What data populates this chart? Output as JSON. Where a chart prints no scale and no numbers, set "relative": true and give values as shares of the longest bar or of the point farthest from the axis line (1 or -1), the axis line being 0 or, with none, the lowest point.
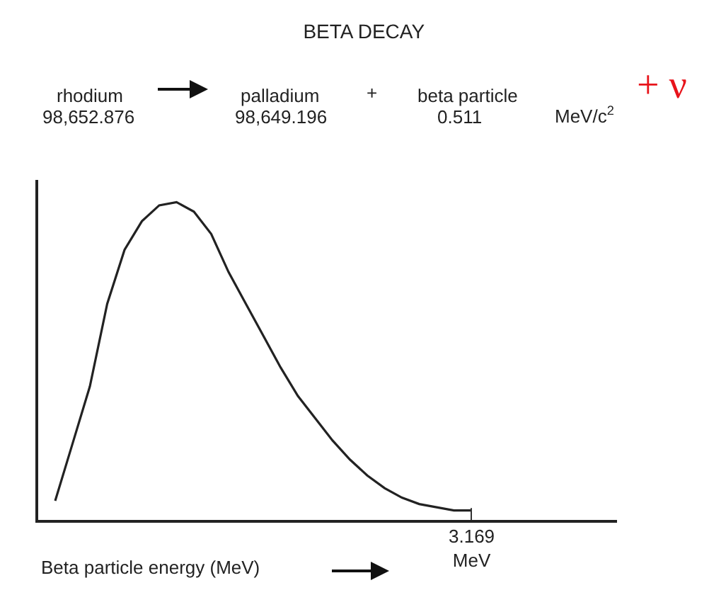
{
  "chart_data": {
    "type": "line",
    "title": "BETA DECAY",
    "xlabel": "Beta particle energy (MeV)",
    "relative": true,
    "categories": [
      null,
      null,
      null,
      null,
      null,
      null,
      null,
      null,
      null,
      null,
      null,
      null,
      null,
      null,
      null,
      null,
      null,
      null,
      null,
      null,
      null,
      null,
      null,
      null,
      null
    ],
    "series": [
      {
        "color": "#222222",
        "values": [
          0.06,
          0.24,
          0.42,
          0.68,
          0.85,
          0.94,
          0.99,
          1.0,
          0.97,
          0.9,
          0.78,
          0.68,
          0.58,
          0.48,
          0.39,
          0.32,
          0.25,
          0.19,
          0.14,
          0.1,
          0.07,
          0.05,
          0.04,
          0.03,
          0.03
        ]
      }
    ],
    "annotations": [
      "rhodium",
      "98,652.876",
      "palladium",
      "98,649.196",
      "+",
      "beta particle",
      "0.511",
      "MeV/c$^{2}$",
      "+ ν",
      "3.169\nMeV"
    ],
    "grid": false,
    "marker": "none",
    "line_style": "solid"
  }
}
